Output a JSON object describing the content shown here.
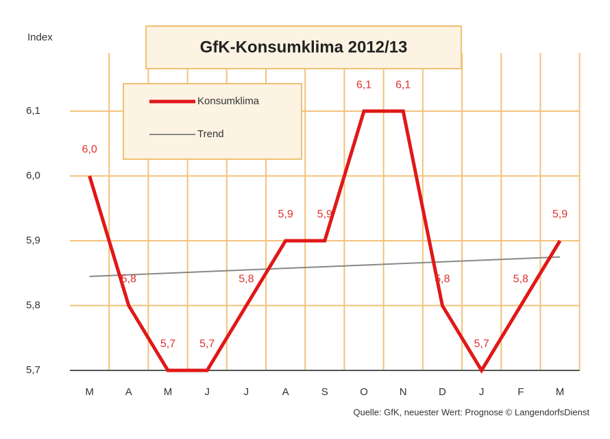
{
  "chart_data": {
    "type": "line",
    "title": "GfK-Konsumklima 2012/13",
    "y_label": "Index",
    "source": "Quelle: GfK, neuester Wert: Prognose © LangendorfsDienst",
    "categories": [
      "M",
      "A",
      "M",
      "J",
      "J",
      "A",
      "S",
      "O",
      "N",
      "D",
      "J",
      "F",
      "M"
    ],
    "series": [
      {
        "name": "Konsumklima",
        "color": "#e01818",
        "values": [
          6.0,
          5.8,
          5.7,
          5.7,
          5.8,
          5.9,
          5.9,
          6.1,
          6.1,
          5.8,
          5.7,
          5.8,
          5.9
        ],
        "value_labels": [
          "6,0",
          "5,8",
          "5,7",
          "5,7",
          "5,8",
          "5,9",
          "5,9",
          "6,1",
          "6,1",
          "5,8",
          "5,7",
          "5,8",
          "5,9"
        ]
      },
      {
        "name": "Trend",
        "color": "#888888",
        "values": [
          5.845,
          5.8475,
          5.85,
          5.8525,
          5.855,
          5.8575,
          5.86,
          5.8625,
          5.865,
          5.8675,
          5.87,
          5.8725,
          5.875
        ]
      }
    ],
    "ylim": [
      5.7,
      6.19
    ],
    "yticks": [
      {
        "value": 5.7,
        "label": "5,7"
      },
      {
        "value": 5.8,
        "label": "5,8"
      },
      {
        "value": 5.9,
        "label": "5,9"
      },
      {
        "value": 6.0,
        "label": "6,0"
      },
      {
        "value": 6.1,
        "label": "6,1"
      }
    ],
    "grid": true,
    "grid_color": "#f2c27a"
  }
}
